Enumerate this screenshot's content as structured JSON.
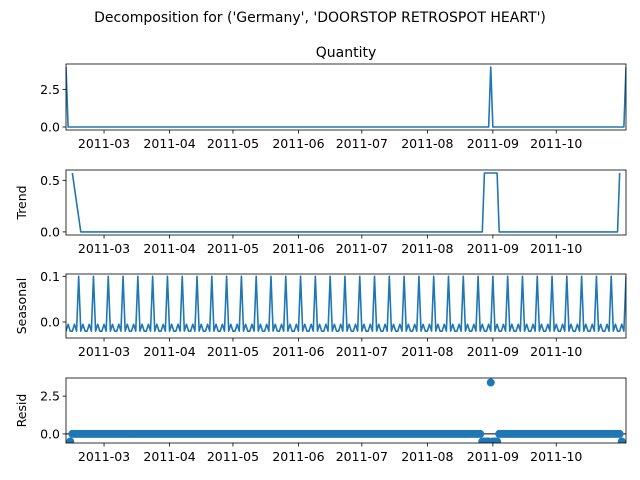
{
  "chart_data": {
    "type": "line",
    "title": "Decomposition for ('Germany', 'DOORSTOP RETROSPOT HEART')",
    "x_range": [
      "2011-02-11",
      "2011-11-03"
    ],
    "x_ticks": [
      "2011-03",
      "2011-04",
      "2011-05",
      "2011-06",
      "2011-07",
      "2011-08",
      "2011-09",
      "2011-10"
    ],
    "color": "#1f77b4",
    "panels": [
      {
        "key": "observed",
        "title": "Quantity",
        "ylabel": "",
        "ylim": [
          -0.2,
          4.2
        ],
        "yticks": [
          "0.0",
          "2.5"
        ],
        "style": "line",
        "series": [
          {
            "x": "2011-02-11",
            "y": 4
          },
          {
            "x": "2011-02-12",
            "y": 0
          },
          {
            "x": "2011-08-30",
            "y": 0
          },
          {
            "x": "2011-08-31",
            "y": 4
          },
          {
            "x": "2011-09-01",
            "y": 0
          },
          {
            "x": "2011-11-02",
            "y": 0
          },
          {
            "x": "2011-11-03",
            "y": 4
          }
        ]
      },
      {
        "key": "trend",
        "title": "",
        "ylabel": "Trend",
        "ylim": [
          -0.03,
          0.6
        ],
        "yticks": [
          "0.0",
          "0.5"
        ],
        "style": "line",
        "series": [
          {
            "x": "2011-02-14",
            "y": 0.571
          },
          {
            "x": "2011-02-18",
            "y": 0
          },
          {
            "x": "2011-08-27",
            "y": 0
          },
          {
            "x": "2011-08-28",
            "y": 0.571
          },
          {
            "x": "2011-09-03",
            "y": 0.571
          },
          {
            "x": "2011-09-04",
            "y": 0
          },
          {
            "x": "2011-10-30",
            "y": 0
          },
          {
            "x": "2011-10-31",
            "y": 0.571
          }
        ]
      },
      {
        "key": "seasonal",
        "title": "",
        "ylabel": "Seasonal",
        "ylim": [
          -0.035,
          0.105
        ],
        "yticks": [
          "0.0",
          "0.1"
        ],
        "style": "seasonal",
        "period_days": 7,
        "pattern": [
          0.1,
          -0.02,
          -0.005,
          -0.02,
          -0.02,
          -0.005,
          -0.02
        ],
        "first_peak": "2011-02-17"
      },
      {
        "key": "resid",
        "title": "",
        "ylabel": "Resid",
        "ylim": [
          -0.6,
          3.7
        ],
        "yticks": [
          "0.0",
          "2.5"
        ],
        "style": "dots",
        "baseline": 0,
        "outliers": [
          {
            "x": "2011-02-13",
            "y": -0.5
          },
          {
            "x": "2011-08-27",
            "y": -0.5
          },
          {
            "x": "2011-08-28",
            "y": -0.5
          },
          {
            "x": "2011-08-29",
            "y": -0.5
          },
          {
            "x": "2011-08-30",
            "y": -0.5
          },
          {
            "x": "2011-08-31",
            "y": 3.4
          },
          {
            "x": "2011-09-01",
            "y": -0.5
          },
          {
            "x": "2011-09-02",
            "y": -0.5
          },
          {
            "x": "2011-09-03",
            "y": -0.5
          },
          {
            "x": "2011-11-01",
            "y": -0.5
          }
        ],
        "dot_range": [
          "2011-02-14",
          "2011-10-31"
        ]
      }
    ]
  }
}
